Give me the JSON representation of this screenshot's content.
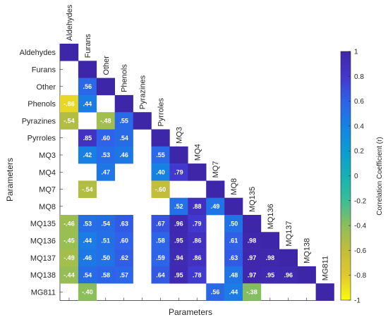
{
  "chart_data": {
    "type": "heatmap",
    "title": "",
    "xlabel": "Parameters",
    "ylabel": "Parameters",
    "parameters": [
      "Aldehydes",
      "Furans",
      "Other",
      "Phenols",
      "Pyrazines",
      "Pyrroles",
      "MQ3",
      "MQ4",
      "MQ7",
      "MQ8",
      "MQ135",
      "MQ136",
      "MQ137",
      "MQ138",
      "MG811"
    ],
    "matrix": [
      [
        1,
        null,
        null,
        null,
        null,
        null,
        null,
        null,
        null,
        null,
        null,
        null,
        null,
        null,
        null
      ],
      [
        null,
        1,
        null,
        null,
        null,
        null,
        null,
        null,
        null,
        null,
        null,
        null,
        null,
        null,
        null
      ],
      [
        null,
        0.56,
        1,
        null,
        null,
        null,
        null,
        null,
        null,
        null,
        null,
        null,
        null,
        null,
        null
      ],
      [
        -0.86,
        0.44,
        null,
        1,
        null,
        null,
        null,
        null,
        null,
        null,
        null,
        null,
        null,
        null,
        null
      ],
      [
        -0.54,
        null,
        -0.48,
        0.55,
        1,
        null,
        null,
        null,
        null,
        null,
        null,
        null,
        null,
        null,
        null
      ],
      [
        null,
        0.85,
        0.6,
        0.54,
        null,
        1,
        null,
        null,
        null,
        null,
        null,
        null,
        null,
        null,
        null
      ],
      [
        null,
        0.42,
        0.53,
        0.46,
        null,
        0.55,
        1,
        null,
        null,
        null,
        null,
        null,
        null,
        null,
        null
      ],
      [
        null,
        null,
        0.47,
        null,
        null,
        0.4,
        0.79,
        1,
        null,
        null,
        null,
        null,
        null,
        null,
        null
      ],
      [
        null,
        -0.54,
        null,
        null,
        null,
        -0.6,
        null,
        null,
        1,
        null,
        null,
        null,
        null,
        null,
        null
      ],
      [
        null,
        null,
        null,
        null,
        null,
        null,
        0.52,
        0.88,
        0.49,
        1,
        null,
        null,
        null,
        null,
        null
      ],
      [
        -0.46,
        0.53,
        0.54,
        0.63,
        null,
        0.67,
        0.96,
        0.79,
        null,
        0.5,
        1,
        null,
        null,
        null,
        null
      ],
      [
        -0.45,
        0.44,
        0.51,
        0.6,
        null,
        0.58,
        0.95,
        0.86,
        null,
        0.61,
        0.98,
        1,
        null,
        null,
        null
      ],
      [
        -0.49,
        0.46,
        0.5,
        0.62,
        null,
        0.59,
        0.94,
        0.86,
        null,
        0.63,
        0.97,
        0.98,
        1,
        null,
        null
      ],
      [
        -0.44,
        0.54,
        0.58,
        0.57,
        null,
        0.64,
        0.95,
        0.78,
        null,
        0.48,
        0.97,
        0.95,
        0.96,
        1,
        null
      ],
      [
        null,
        -0.4,
        null,
        null,
        null,
        null,
        null,
        null,
        0.56,
        0.44,
        -0.38,
        null,
        null,
        null,
        1
      ]
    ],
    "colorbar": {
      "label": "Correlation Coefficient (r)",
      "range": [
        -1,
        1
      ],
      "ticks": [
        "-1",
        "-0.8",
        "-0.6",
        "-0.4",
        "-0.2",
        "0",
        "0.2",
        "0.4",
        "0.6",
        "0.8",
        "1"
      ]
    },
    "grid": false
  }
}
